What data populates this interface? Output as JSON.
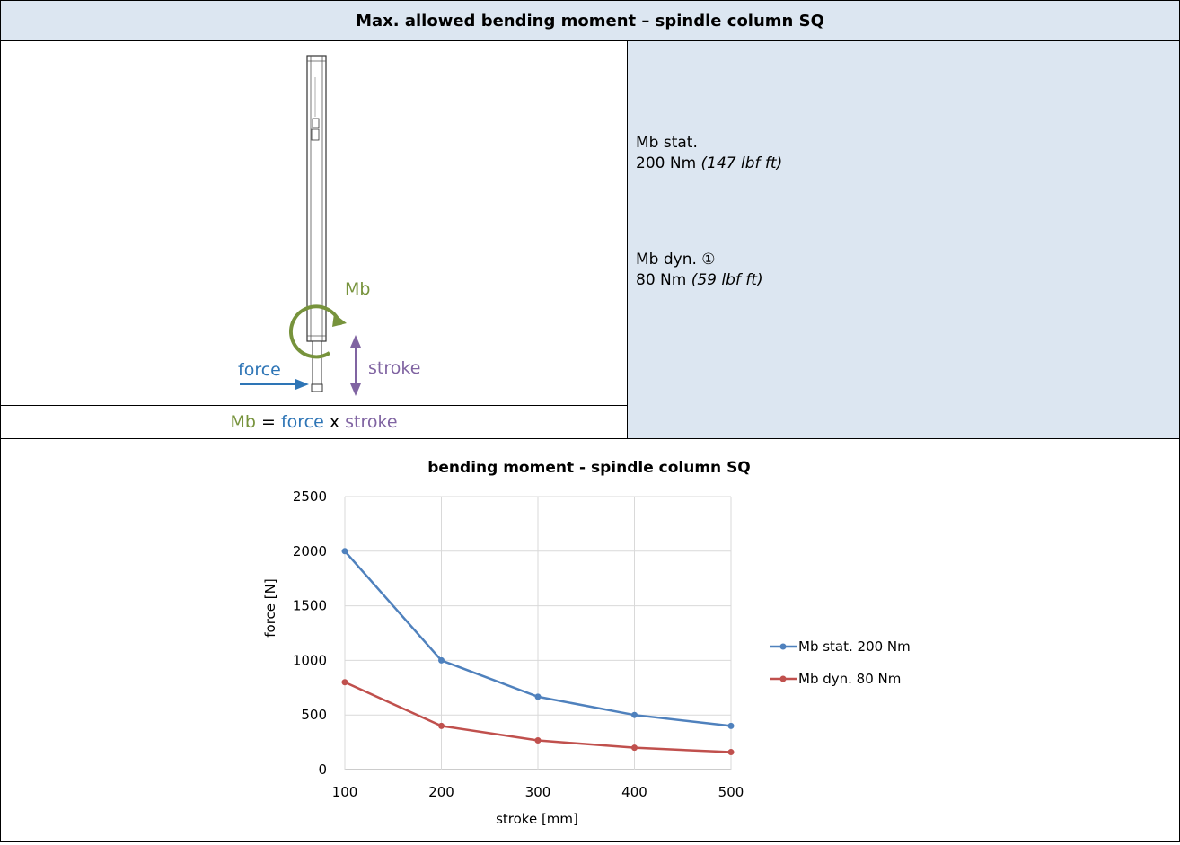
{
  "header": {
    "title": "Max. allowed bending moment – spindle column SQ"
  },
  "figure": {
    "mb_label": "Mb",
    "force_label": "force",
    "stroke_label": "stroke",
    "colors": {
      "mb": "#77933c",
      "force": "#2e75b6",
      "stroke": "#8064a2"
    }
  },
  "formula": {
    "mb": "Mb",
    "eq": " = ",
    "force": "force",
    "x": " x ",
    "stroke": "stroke"
  },
  "spec": {
    "stat_title": "Mb stat.",
    "stat_value": "200 Nm",
    "stat_imperial": "(147 lbf ft)",
    "dyn_title": "Mb dyn. ①",
    "dyn_value": "80 Nm",
    "dyn_imperial": "(59 lbf ft)"
  },
  "chart_data": {
    "type": "line",
    "title": "bending moment - spindle column SQ",
    "xlabel": "stroke [mm]",
    "ylabel": "force [N]",
    "x": [
      100,
      200,
      300,
      400,
      500
    ],
    "xlim": [
      100,
      500
    ],
    "ylim": [
      0,
      2500
    ],
    "xticks": [
      100,
      200,
      300,
      400,
      500
    ],
    "yticks": [
      0,
      500,
      1000,
      1500,
      2000,
      2500
    ],
    "grid": true,
    "legend_position": "right",
    "series": [
      {
        "name": "Mb stat. 200 Nm",
        "values": [
          2000,
          1000,
          667,
          500,
          400
        ],
        "color": "#4f81bd"
      },
      {
        "name": "Mb dyn. 80 Nm",
        "values": [
          800,
          400,
          267,
          200,
          160
        ],
        "color": "#c0504d"
      }
    ]
  }
}
